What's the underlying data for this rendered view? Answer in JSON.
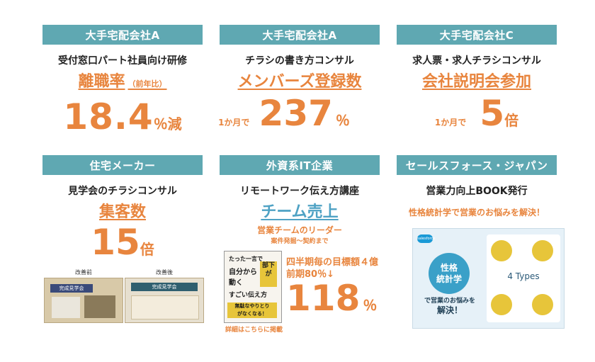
{
  "cards": [
    {
      "header": "大手宅配会社A",
      "subtitle": "受付窓口パート社員向け研修",
      "metric": "離職率",
      "metric_note": "（前年比）",
      "value": "18.4",
      "unit": "％減"
    },
    {
      "header": "大手宅配会社A",
      "subtitle": "チラシの書き方コンサル",
      "metric": "メンバーズ登録数",
      "prefix": "1か月で",
      "value": "237",
      "unit": "％"
    },
    {
      "header": "大手宅配会社C",
      "subtitle": "求人票・求人チラシコンサル",
      "metric": "会社説明会参加",
      "prefix": "1か月で",
      "value": "5",
      "unit": "倍"
    },
    {
      "header": "住宅メーカー",
      "subtitle": "見学会のチラシコンサル",
      "metric": "集客数",
      "value": "15",
      "unit": "倍",
      "photo_before": "改善前",
      "photo_after": "改善後",
      "photo_before_title": "完成見学会",
      "photo_after_title": "完成見学会"
    },
    {
      "header": "外資系IT企業",
      "subtitle": "リモートワーク伝え方講座",
      "metric": "チーム売上",
      "target": "営業チームのリーダー",
      "target_scope": "案件発掘〜契約まで",
      "detail1": "四半期毎の目標額４億",
      "detail2": "前期80％↓",
      "value": "118",
      "unit": "％",
      "book_line1": "たった一言で",
      "book_line2": "部下が",
      "book_line3": "自分から",
      "book_line4": "動く",
      "book_line5": "すごい伝え方",
      "book_line6": "無駄なやりとり",
      "book_line7": "がなくなる！",
      "book_note": "詳細はこちらに掲載"
    },
    {
      "header": "セールスフォース・ジャパン",
      "subtitle": "営業力向上BOOK発行",
      "tagline": "性格統計学で営業のお悩みを解決！",
      "book_title1": "性格",
      "book_title2": "統計学",
      "book_sub1": "で営業のお悩みを",
      "book_sub2": "解決！",
      "book_types": "4 Types",
      "book_brand": "salesforce"
    }
  ],
  "colors": {
    "header_bg": "#5fa8b2",
    "accent": "#e8853e",
    "text": "#1a1a1a"
  }
}
